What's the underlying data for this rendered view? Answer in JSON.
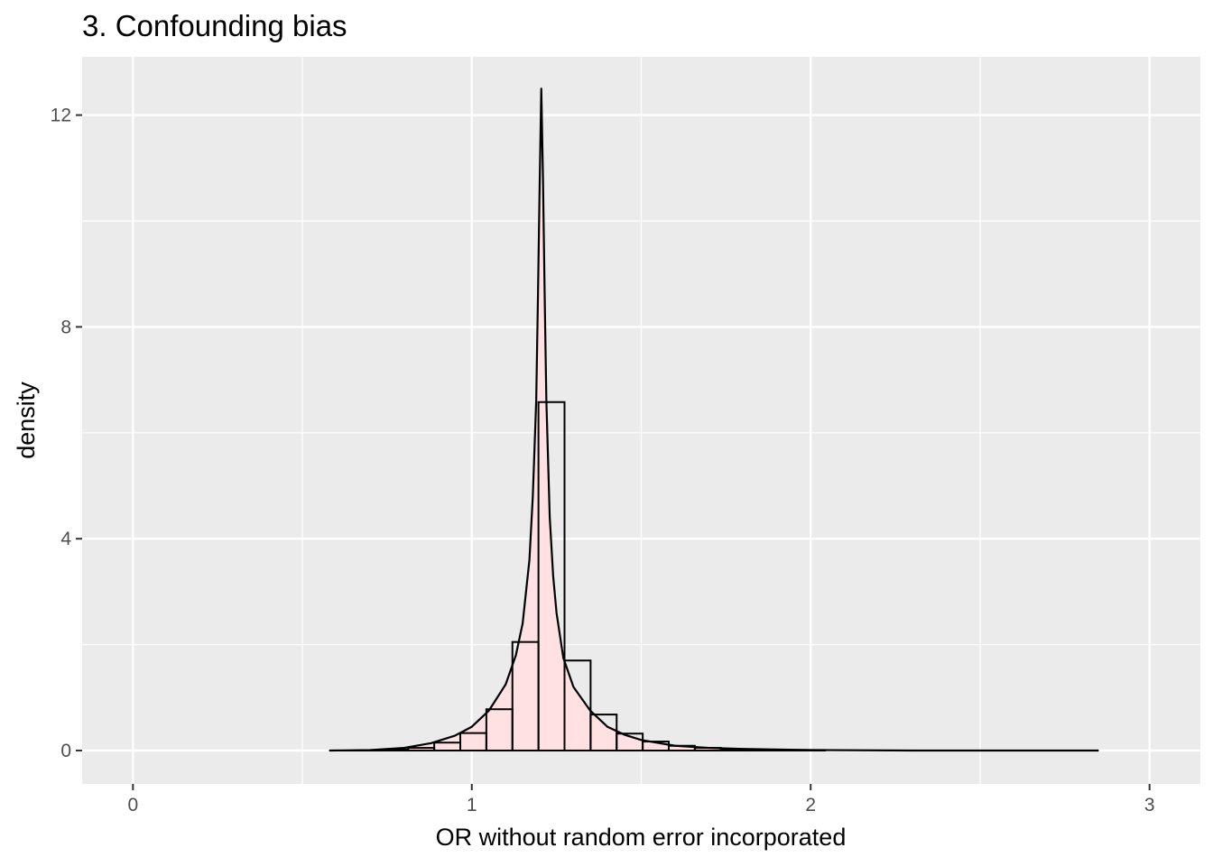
{
  "chart_data": {
    "type": "histogram",
    "title": "3. Confounding bias",
    "xlabel": "OR without random error incorporated",
    "ylabel": "density",
    "xlim": [
      -0.15,
      3.15
    ],
    "ylim": [
      -0.63,
      13.1
    ],
    "x_ticks": [
      0,
      1,
      2,
      3
    ],
    "x_tick_labels": [
      "0",
      "1",
      "2",
      "3"
    ],
    "y_ticks": [
      0,
      4,
      8,
      12
    ],
    "y_tick_labels": [
      "0",
      "4",
      "8",
      "12"
    ],
    "x_minor_grid": [
      0.5,
      1.5,
      2.5
    ],
    "y_minor_grid": [
      2,
      6,
      10
    ],
    "grid": true,
    "legend": "none",
    "bin_width": 0.0769,
    "bins": [
      {
        "x0": 0.5815,
        "count_density": 0.0
      },
      {
        "x0": 0.6584,
        "count_density": 0.0
      },
      {
        "x0": 0.7353,
        "count_density": 0.02
      },
      {
        "x0": 0.8122,
        "count_density": 0.05
      },
      {
        "x0": 0.8891,
        "count_density": 0.15
      },
      {
        "x0": 0.966,
        "count_density": 0.33
      },
      {
        "x0": 1.0429,
        "count_density": 0.78
      },
      {
        "x0": 1.1198,
        "count_density": 2.05
      },
      {
        "x0": 1.1967,
        "count_density": 6.58
      },
      {
        "x0": 1.2736,
        "count_density": 1.7
      },
      {
        "x0": 1.3505,
        "count_density": 0.68
      },
      {
        "x0": 1.4274,
        "count_density": 0.32
      },
      {
        "x0": 1.5043,
        "count_density": 0.17
      },
      {
        "x0": 1.5812,
        "count_density": 0.09
      },
      {
        "x0": 1.6581,
        "count_density": 0.05
      },
      {
        "x0": 1.735,
        "count_density": 0.02
      },
      {
        "x0": 1.8119,
        "count_density": 0.01
      },
      {
        "x0": 1.8888,
        "count_density": 0.01
      },
      {
        "x0": 1.9657,
        "count_density": 0.01
      }
    ],
    "density_curve": {
      "x": [
        0.58,
        0.7,
        0.8,
        0.88,
        0.95,
        1.0,
        1.05,
        1.1,
        1.13,
        1.15,
        1.17,
        1.18,
        1.19,
        1.195,
        1.2,
        1.205,
        1.21,
        1.215,
        1.22,
        1.23,
        1.24,
        1.25,
        1.27,
        1.3,
        1.35,
        1.4,
        1.45,
        1.5,
        1.6,
        1.7,
        1.8,
        2.0,
        2.3,
        2.6,
        2.85
      ],
      "y": [
        0.0,
        0.01,
        0.05,
        0.14,
        0.28,
        0.45,
        0.75,
        1.25,
        1.8,
        2.4,
        3.6,
        4.8,
        6.6,
        8.5,
        10.6,
        12.5,
        10.8,
        8.6,
        6.6,
        4.4,
        3.3,
        2.6,
        1.75,
        1.2,
        0.75,
        0.45,
        0.3,
        0.2,
        0.09,
        0.05,
        0.03,
        0.01,
        0.0,
        0.0,
        0.0
      ]
    },
    "colors": {
      "panel": "#ebebeb",
      "grid": "#ffffff",
      "density_fill": "#ffe0e3",
      "outline": "#000000",
      "tick_text": "#4d4d4d",
      "tick_mark": "#333333"
    }
  }
}
